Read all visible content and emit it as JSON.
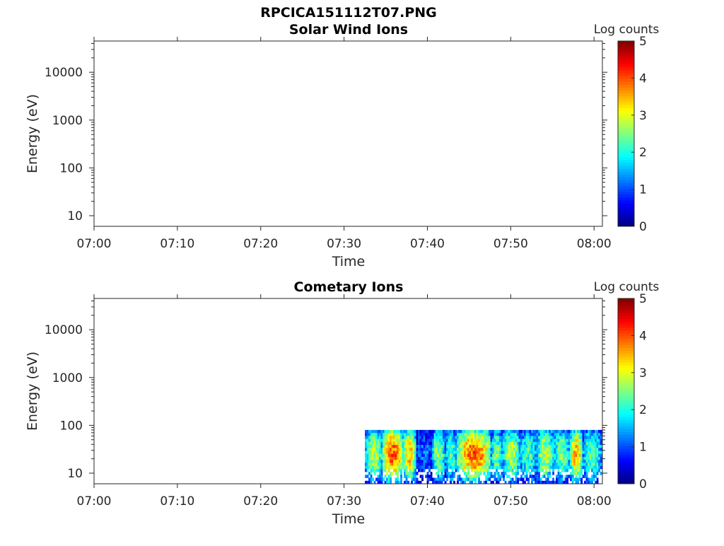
{
  "figure": {
    "title": "RPCICA151112T07.PNG"
  },
  "colorbar": {
    "label": "Log counts",
    "ticks": [
      "0",
      "1",
      "2",
      "3",
      "4",
      "5"
    ],
    "colormap": "jet",
    "range": [
      0,
      5
    ]
  },
  "chart_data": [
    {
      "type": "heatmap",
      "title": "Solar Wind Ions",
      "xlabel": "Time",
      "ylabel": "Energy (eV)",
      "x_tick_labels": [
        "07:00",
        "07:10",
        "07:20",
        "07:30",
        "07:40",
        "07:50",
        "08:00"
      ],
      "y_tick_labels": [
        "10",
        "100",
        "1000",
        "10000"
      ],
      "x_range": [
        "07:00",
        "08:01"
      ],
      "y_range": [
        6,
        45000
      ],
      "y_scale": "log",
      "grid": false,
      "data_present": false,
      "bands": []
    },
    {
      "type": "heatmap",
      "title": "Cometary Ions",
      "xlabel": "Time",
      "ylabel": "Energy (eV)",
      "x_tick_labels": [
        "07:00",
        "07:10",
        "07:20",
        "07:30",
        "07:40",
        "07:50",
        "08:00"
      ],
      "y_tick_labels": [
        "10",
        "100",
        "1000",
        "10000"
      ],
      "x_range": [
        "07:00",
        "08:01"
      ],
      "y_range": [
        6,
        45000
      ],
      "y_scale": "log",
      "grid": false,
      "data_present": true,
      "data_time_range": [
        "07:32:30",
        "08:00:50"
      ],
      "data_energy_range": [
        6,
        80
      ],
      "bands": [
        {
          "start": "07:32:30",
          "end": "07:34:30",
          "peak_log_counts": 2.8
        },
        {
          "start": "07:34:30",
          "end": "07:37:00",
          "peak_log_counts": 4.0
        },
        {
          "start": "07:37:00",
          "end": "07:38:30",
          "peak_log_counts": 3.4
        },
        {
          "start": "07:38:30",
          "end": "07:40:30",
          "peak_log_counts": 1.2
        },
        {
          "start": "07:40:30",
          "end": "07:42:00",
          "peak_log_counts": 2.6
        },
        {
          "start": "07:42:00",
          "end": "07:43:30",
          "peak_log_counts": 2.2
        },
        {
          "start": "07:43:30",
          "end": "07:47:30",
          "peak_log_counts": 3.9
        },
        {
          "start": "07:47:30",
          "end": "07:49:00",
          "peak_log_counts": 2.4
        },
        {
          "start": "07:49:00",
          "end": "07:51:00",
          "peak_log_counts": 2.8
        },
        {
          "start": "07:51:00",
          "end": "07:53:00",
          "peak_log_counts": 2.2
        },
        {
          "start": "07:53:00",
          "end": "07:55:00",
          "peak_log_counts": 2.8
        },
        {
          "start": "07:55:00",
          "end": "07:57:00",
          "peak_log_counts": 2.4
        },
        {
          "start": "07:57:00",
          "end": "07:58:30",
          "peak_log_counts": 3.5
        },
        {
          "start": "07:58:30",
          "end": "08:00:50",
          "peak_log_counts": 2.3
        }
      ]
    }
  ]
}
